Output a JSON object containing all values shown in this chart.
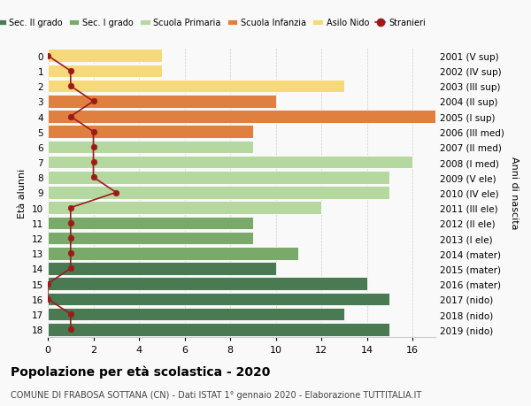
{
  "ages": [
    18,
    17,
    16,
    15,
    14,
    13,
    12,
    11,
    10,
    9,
    8,
    7,
    6,
    5,
    4,
    3,
    2,
    1,
    0
  ],
  "years": [
    "2001 (V sup)",
    "2002 (IV sup)",
    "2003 (III sup)",
    "2004 (II sup)",
    "2005 (I sup)",
    "2006 (III med)",
    "2007 (II med)",
    "2008 (I med)",
    "2009 (V ele)",
    "2010 (IV ele)",
    "2011 (III ele)",
    "2012 (II ele)",
    "2013 (I ele)",
    "2014 (mater)",
    "2015 (mater)",
    "2016 (mater)",
    "2017 (nido)",
    "2018 (nido)",
    "2019 (nido)"
  ],
  "bar_values": [
    15,
    13,
    15,
    14,
    10,
    11,
    9,
    9,
    12,
    15,
    15,
    16,
    9,
    9,
    17,
    10,
    13,
    5,
    5
  ],
  "bar_colors": [
    "#4a7a52",
    "#4a7a52",
    "#4a7a52",
    "#4a7a52",
    "#4a7a52",
    "#7aaa6a",
    "#7aaa6a",
    "#7aaa6a",
    "#b5d8a0",
    "#b5d8a0",
    "#b5d8a0",
    "#b5d8a0",
    "#b5d8a0",
    "#e08040",
    "#e08040",
    "#e08040",
    "#f5d97a",
    "#f5d97a",
    "#f5d97a"
  ],
  "stranieri_values": [
    1,
    1,
    0,
    0,
    1,
    1,
    1,
    1,
    1,
    3,
    2,
    2,
    2,
    2,
    1,
    2,
    1,
    1,
    0
  ],
  "legend_labels": [
    "Sec. II grado",
    "Sec. I grado",
    "Scuola Primaria",
    "Scuola Infanzia",
    "Asilo Nido",
    "Stranieri"
  ],
  "legend_colors": [
    "#4a7a52",
    "#7aaa6a",
    "#b5d8a0",
    "#e08040",
    "#f5d97a",
    "#9e1a1a"
  ],
  "title": "Popolazione per età scolastica - 2020",
  "subtitle": "COMUNE DI FRABOSA SOTTANA (CN) - Dati ISTAT 1° gennaio 2020 - Elaborazione TUTTITALIA.IT",
  "ylabel_left": "Età alunni",
  "ylabel_right": "Anni di nascita",
  "xlim": [
    0,
    17
  ],
  "xticks": [
    0,
    2,
    4,
    6,
    8,
    10,
    12,
    14,
    16
  ],
  "stranieri_color": "#9e1a1a",
  "bg_color": "#f9f9f9"
}
